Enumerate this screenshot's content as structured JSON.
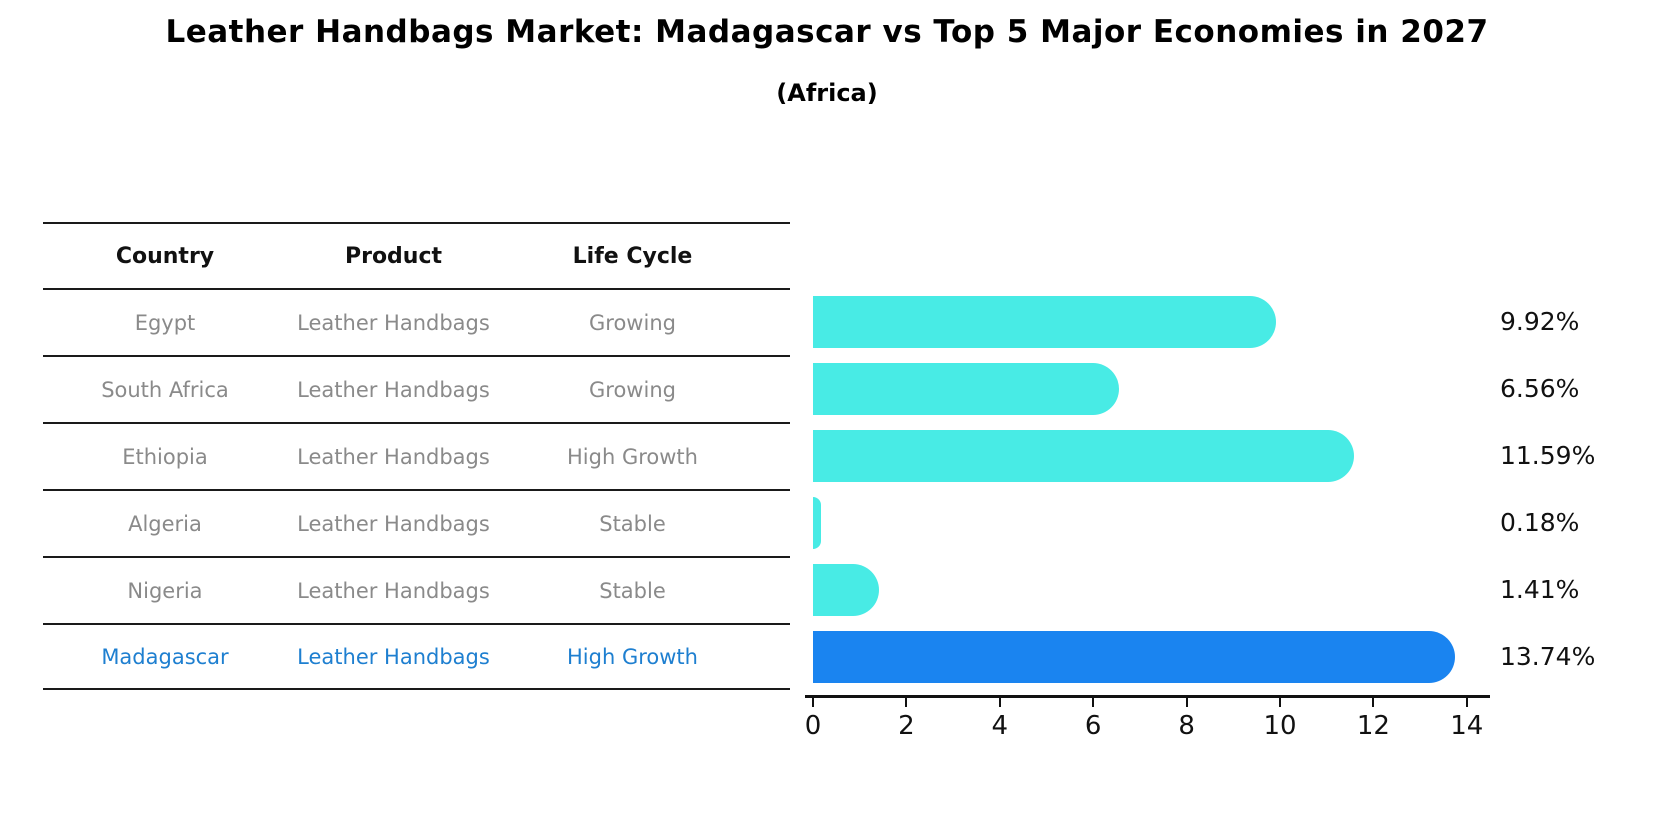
{
  "title": "Leather Handbags Market: Madagascar vs Top 5 Major Economies in 2027",
  "subtitle": "(Africa)",
  "table": {
    "headers": [
      "Country",
      "Product",
      "Life Cycle"
    ],
    "rows": [
      {
        "country": "Egypt",
        "product": "Leather Handbags",
        "life_cycle": "Growing",
        "highlight": false
      },
      {
        "country": "South Africa",
        "product": "Leather Handbags",
        "life_cycle": "Growing",
        "highlight": false
      },
      {
        "country": "Ethiopia",
        "product": "Leather Handbags",
        "life_cycle": "High Growth",
        "highlight": false
      },
      {
        "country": "Algeria",
        "product": "Leather Handbags",
        "life_cycle": "Stable",
        "highlight": false
      },
      {
        "country": "Nigeria",
        "product": "Leather Handbags",
        "life_cycle": "Stable",
        "highlight": false
      },
      {
        "country": "Madagascar",
        "product": "Leather Handbags",
        "life_cycle": "High Growth",
        "highlight": true
      }
    ]
  },
  "chart_data": {
    "type": "bar",
    "orientation": "horizontal",
    "title": "Leather Handbags Market: Madagascar vs Top 5 Major Economies in 2027 (Africa)",
    "categories": [
      "Egypt",
      "South Africa",
      "Ethiopia",
      "Algeria",
      "Nigeria",
      "Madagascar"
    ],
    "values": [
      9.92,
      6.56,
      11.59,
      0.18,
      1.41,
      13.74
    ],
    "value_labels": [
      "9.92%",
      "6.56%",
      "11.59%",
      "0.18%",
      "1.41%",
      "13.74%"
    ],
    "xticks": [
      0,
      2,
      4,
      6,
      8,
      10,
      12,
      14
    ],
    "xlim": [
      0,
      14.5
    ],
    "grid": false,
    "legend": "none",
    "highlight_index": 5
  },
  "colors": {
    "bar": "#48ebe5",
    "highlight_bar": "#1a84f0",
    "highlight_text": "#1e7fd0",
    "table_text": "#8a8a8a",
    "axis": "#111111"
  }
}
